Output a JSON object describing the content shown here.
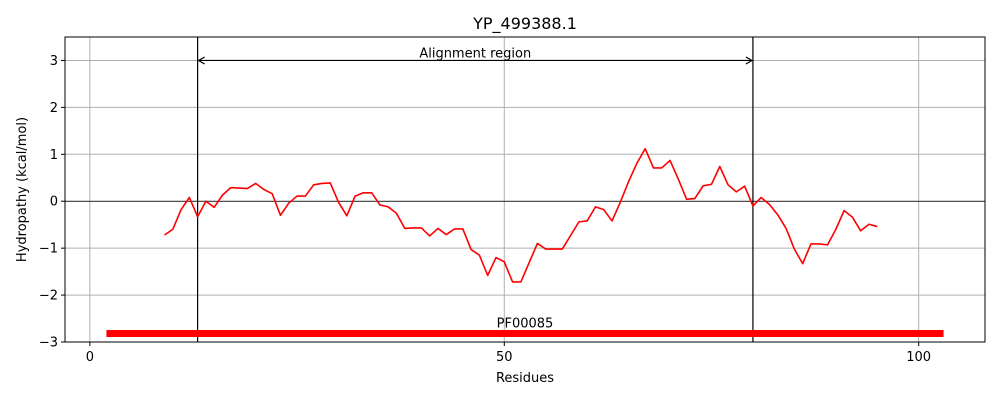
{
  "chart_data": {
    "type": "line",
    "title": "YP_499388.1",
    "xlabel": "Residues",
    "ylabel": "Hydropathy (kcal/mol)",
    "xlim": [
      -3,
      108
    ],
    "ylim": [
      -3,
      3.5
    ],
    "xticks": [
      0,
      50,
      100
    ],
    "xtick_labels": [
      "0",
      "50",
      "100"
    ],
    "yticks": [
      -3,
      -2,
      -1,
      0,
      1,
      2,
      3
    ],
    "ytick_labels": [
      "−3",
      "−2",
      "−1",
      "0",
      "1",
      "2",
      "3"
    ],
    "grid": true,
    "series": [
      {
        "color": "#ff0000",
        "x": [
          9,
          10,
          11,
          12,
          13,
          14,
          15,
          16,
          17,
          18,
          19,
          20,
          21,
          22,
          23,
          24,
          25,
          26,
          27,
          28,
          29,
          30,
          31,
          32,
          33,
          34,
          35,
          36,
          37,
          38,
          39,
          40,
          41,
          42,
          43,
          44,
          45,
          46,
          47,
          48,
          49,
          50,
          51,
          52,
          53,
          54,
          55,
          56,
          57,
          58,
          59,
          60,
          61,
          62,
          63,
          64,
          65,
          66,
          67,
          68,
          69,
          70,
          71,
          72,
          73,
          74,
          75,
          76,
          77,
          78,
          79,
          80,
          81,
          82,
          83,
          84,
          85,
          86,
          87,
          88,
          89,
          90,
          91,
          92,
          93,
          94,
          95
        ],
        "y": [
          -0.72,
          -0.6,
          -0.18,
          0.08,
          -0.33,
          0.0,
          -0.13,
          0.13,
          0.29,
          0.28,
          0.27,
          0.38,
          0.25,
          0.16,
          -0.3,
          -0.04,
          0.11,
          0.11,
          0.35,
          0.38,
          0.39,
          -0.02,
          -0.31,
          0.11,
          0.18,
          0.18,
          -0.08,
          -0.12,
          -0.26,
          -0.58,
          -0.57,
          -0.57,
          -0.74,
          -0.58,
          -0.71,
          -0.59,
          -0.59,
          -1.03,
          -1.15,
          -1.58,
          -1.2,
          -1.29,
          -1.72,
          -1.72,
          -1.31,
          -0.9,
          -1.02,
          -1.02,
          -1.02,
          -0.73,
          -0.44,
          -0.42,
          -0.12,
          -0.18,
          -0.42,
          -0.02,
          0.42,
          0.81,
          1.12,
          0.71,
          0.71,
          0.87,
          0.47,
          0.04,
          0.06,
          0.33,
          0.36,
          0.74,
          0.35,
          0.2,
          0.32,
          -0.1,
          0.08,
          -0.07,
          -0.29,
          -0.58,
          -1.02,
          -1.33,
          -0.91,
          -0.91,
          -0.93,
          -0.6,
          -0.2,
          -0.34,
          -0.63,
          -0.49,
          -0.54
        ]
      }
    ],
    "hlines": [
      0
    ],
    "vlines": [
      13,
      80
    ],
    "annotations": [
      {
        "text": "Alignment region",
        "x": 46.5,
        "y": 3.15,
        "arrow": {
          "x_start": 13,
          "x_end": 80,
          "y": 3
        }
      }
    ],
    "domains": [
      {
        "label": "PF00085",
        "x_start": 2,
        "x_end": 103,
        "y": -2.82,
        "color": "#ff0000"
      }
    ]
  }
}
